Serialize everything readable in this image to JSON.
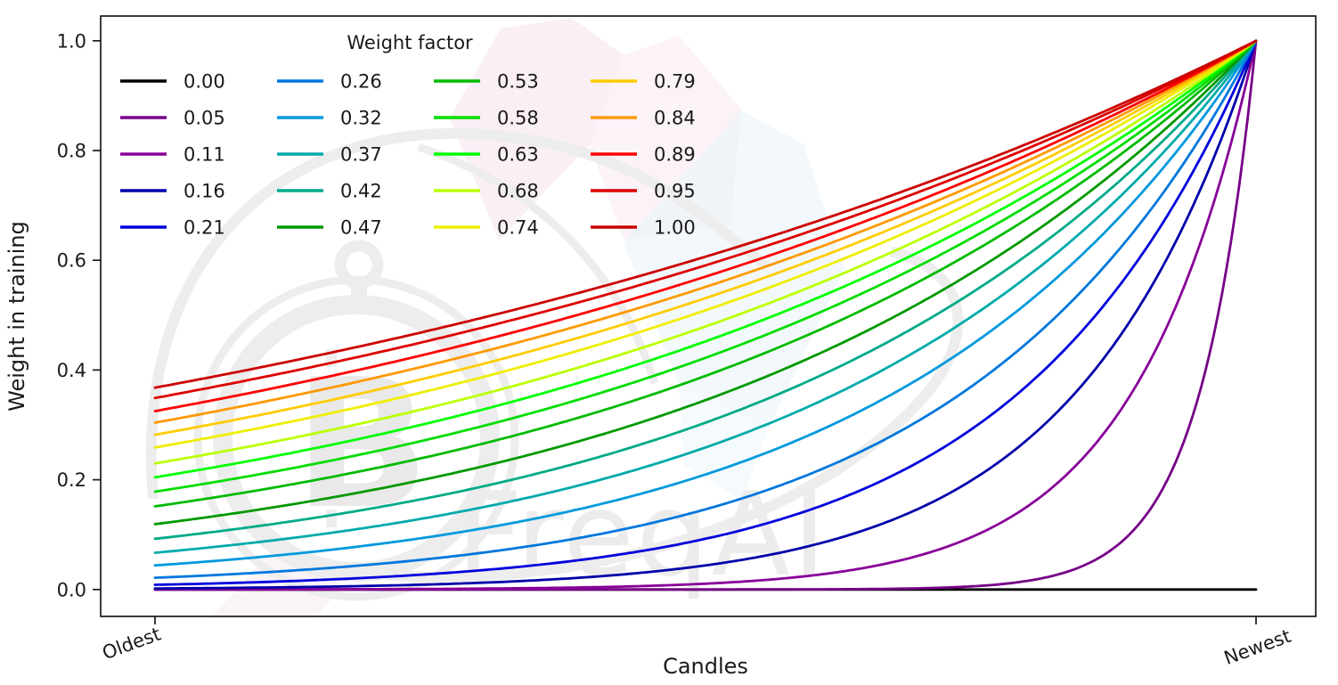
{
  "chart_data": {
    "type": "line",
    "title": "",
    "legend_title": "Weight factor",
    "legend_position": "upper-left",
    "legend_columns": 4,
    "xlabel": "Candles",
    "ylabel": "Weight in training",
    "x_tick_labels": [
      "Oldest",
      "Newest"
    ],
    "y_ticks": [
      "0.0",
      "0.2",
      "0.4",
      "0.6",
      "0.8",
      "1.0"
    ],
    "ylim": [
      0,
      1
    ],
    "grid": false,
    "curve_formula": "weight(x) = exp(-(1 - x) / weight_factor) for weight_factor > 0; weight_factor = 0 stays at 0",
    "series": [
      {
        "label": "0.00",
        "weight_factor": 0.0,
        "color": "#000000",
        "y_at_oldest": 0.0,
        "y_at_newest": 0.0
      },
      {
        "label": "0.05",
        "weight_factor": 0.05,
        "color": "#770088",
        "y_at_oldest": 0.0,
        "y_at_newest": 1.0
      },
      {
        "label": "0.11",
        "weight_factor": 0.11,
        "color": "#880099",
        "y_at_oldest": 0.0,
        "y_at_newest": 1.0
      },
      {
        "label": "0.16",
        "weight_factor": 0.16,
        "color": "#0000aa",
        "y_at_oldest": 0.002,
        "y_at_newest": 1.0
      },
      {
        "label": "0.21",
        "weight_factor": 0.21,
        "color": "#0000dd",
        "y_at_oldest": 0.009,
        "y_at_newest": 1.0
      },
      {
        "label": "0.26",
        "weight_factor": 0.26,
        "color": "#0077dd",
        "y_at_oldest": 0.021,
        "y_at_newest": 1.0
      },
      {
        "label": "0.32",
        "weight_factor": 0.32,
        "color": "#0099dd",
        "y_at_oldest": 0.044,
        "y_at_newest": 1.0
      },
      {
        "label": "0.37",
        "weight_factor": 0.37,
        "color": "#00aaaa",
        "y_at_oldest": 0.067,
        "y_at_newest": 1.0
      },
      {
        "label": "0.42",
        "weight_factor": 0.42,
        "color": "#00aa88",
        "y_at_oldest": 0.092,
        "y_at_newest": 1.0
      },
      {
        "label": "0.47",
        "weight_factor": 0.47,
        "color": "#009900",
        "y_at_oldest": 0.119,
        "y_at_newest": 1.0
      },
      {
        "label": "0.53",
        "weight_factor": 0.53,
        "color": "#00bb00",
        "y_at_oldest": 0.152,
        "y_at_newest": 1.0
      },
      {
        "label": "0.58",
        "weight_factor": 0.58,
        "color": "#00dd00",
        "y_at_oldest": 0.178,
        "y_at_newest": 1.0
      },
      {
        "label": "0.63",
        "weight_factor": 0.63,
        "color": "#00ff00",
        "y_at_oldest": 0.204,
        "y_at_newest": 1.0
      },
      {
        "label": "0.68",
        "weight_factor": 0.68,
        "color": "#bbff00",
        "y_at_oldest": 0.23,
        "y_at_newest": 1.0
      },
      {
        "label": "0.74",
        "weight_factor": 0.74,
        "color": "#eeee00",
        "y_at_oldest": 0.259,
        "y_at_newest": 1.0
      },
      {
        "label": "0.79",
        "weight_factor": 0.79,
        "color": "#ffcc00",
        "y_at_oldest": 0.282,
        "y_at_newest": 1.0
      },
      {
        "label": "0.84",
        "weight_factor": 0.84,
        "color": "#ff9900",
        "y_at_oldest": 0.304,
        "y_at_newest": 1.0
      },
      {
        "label": "0.89",
        "weight_factor": 0.89,
        "color": "#ff0000",
        "y_at_oldest": 0.325,
        "y_at_newest": 1.0
      },
      {
        "label": "0.95",
        "weight_factor": 0.95,
        "color": "#dd0000",
        "y_at_oldest": 0.349,
        "y_at_newest": 1.0
      },
      {
        "label": "1.00",
        "weight_factor": 1.0,
        "color": "#cc0000",
        "y_at_oldest": 0.368,
        "y_at_newest": 1.0
      }
    ],
    "watermark_text": "FreqAI",
    "watermark_symbol": "B",
    "colors": {
      "axis": "#1a1a1a",
      "background": "#ffffff",
      "watermark_gray": "#ededed",
      "watermark_pink": "#f6e4ee",
      "watermark_blue": "#e7f2f7"
    }
  }
}
